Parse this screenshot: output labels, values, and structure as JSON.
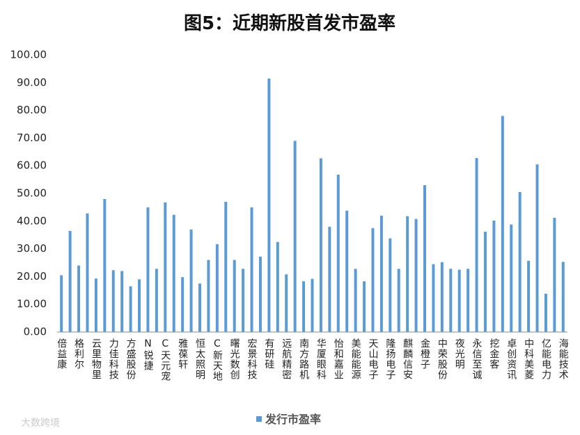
{
  "chart_data": {
    "type": "bar",
    "title": "图5：近期新股首发市盈率",
    "categories": [
      "倍益康",
      null,
      "格利尔",
      null,
      "云里物里",
      null,
      "力佳科技",
      null,
      "方盛股份",
      null,
      "N锐捷",
      null,
      "C天元宠",
      null,
      "雅葆轩",
      null,
      "恒太照明",
      null,
      "C新天地",
      null,
      "曙光数创",
      null,
      "宏景科技",
      null,
      "有研硅",
      null,
      "远航精密",
      null,
      "南方路机",
      null,
      "华厦眼科",
      null,
      "怡和嘉业",
      null,
      "美能能源",
      null,
      "天山电子",
      null,
      "隆扬电子",
      null,
      "麒麟信安",
      null,
      "金橙子",
      null,
      "中荣股份",
      null,
      "夜光明",
      null,
      "永信至诚",
      null,
      "挖金客",
      null,
      "卓创资讯",
      null,
      "中科美菱",
      null,
      "亿能电力",
      null,
      "海能技术"
    ],
    "series": [
      {
        "name": "发行市盈率",
        "color": "#5b9bd5",
        "values": [
          20.5,
          36.5,
          24,
          42.8,
          19.3,
          48,
          22.3,
          22,
          16.5,
          19,
          45,
          22.8,
          46.8,
          42.3,
          19.8,
          37,
          17.5,
          26,
          31.7,
          47,
          26,
          22.8,
          45,
          27.2,
          91.5,
          32.5,
          20.8,
          69,
          18.3,
          19.2,
          62.7,
          38,
          56.8,
          43.8,
          22.8,
          18.3,
          37.5,
          42,
          33.8,
          22.8,
          41.8,
          40.8,
          53,
          24.5,
          25.2,
          22.8,
          22.5,
          22.8,
          62.8,
          36.2,
          40.2,
          78,
          38.8,
          50.5,
          25.7,
          60.5,
          13.8,
          41.2,
          25.3
        ]
      }
    ],
    "ylim": [
      0,
      100
    ],
    "yticks": [
      {
        "value": 0,
        "label": "0.00"
      },
      {
        "value": 10,
        "label": "10.00"
      },
      {
        "value": 20,
        "label": "20.00"
      },
      {
        "value": 30,
        "label": "30.00"
      },
      {
        "value": 40,
        "label": "40.00"
      },
      {
        "value": 50,
        "label": "50.00"
      },
      {
        "value": 60,
        "label": "60.00"
      },
      {
        "value": 70,
        "label": "70.00"
      },
      {
        "value": 80,
        "label": "80.00"
      },
      {
        "value": 90,
        "label": "90.00"
      },
      {
        "value": 100,
        "label": "100.00"
      }
    ],
    "grid": false,
    "legend": "bottom",
    "watermark": "大数跨境"
  }
}
